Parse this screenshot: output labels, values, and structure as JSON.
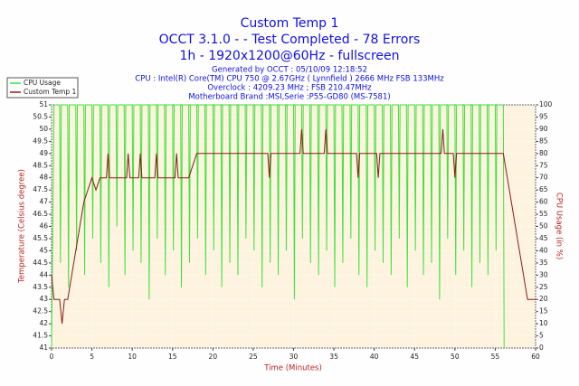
{
  "chart_data": {
    "type": "line",
    "title": "Custom Temp 1",
    "subtitle": [
      "OCCT 3.1.0 -  - Test Completed - 78 Errors",
      "1h - 1920x1200@60Hz - fullscreen"
    ],
    "info": [
      "Generated by OCCT : 05/10/09 12:18:52",
      "CPU : Intel(R) Core(TM) CPU 750 @ 2.67GHz ( Lynnfield ) 2666 MHz FSB 133MHz",
      "Overclock : 4209.23 MHz ; FSB 210.47MHz",
      "Motherboard Brand :MSI,Serie :P55-GD80 (MS-7581)"
    ],
    "xlabel": "Time (Minutes)",
    "ylabel": "Temperature (Celsius degree)",
    "y2label": "CPU Usage (in %)",
    "xlim": [
      0,
      60
    ],
    "xticks": [
      0,
      5,
      10,
      15,
      20,
      25,
      30,
      35,
      40,
      45,
      50,
      55,
      60
    ],
    "ylim": [
      41,
      51
    ],
    "yticks": [
      41,
      41.5,
      42,
      42.5,
      43,
      43.5,
      44,
      44.5,
      45,
      45.5,
      46,
      46.5,
      47,
      47.5,
      48,
      48.5,
      49,
      49.5,
      50,
      50.5,
      51
    ],
    "y2lim": [
      0,
      100
    ],
    "y2ticks": [
      0,
      5,
      10,
      15,
      20,
      25,
      30,
      35,
      40,
      45,
      50,
      55,
      60,
      65,
      70,
      75,
      80,
      85,
      90,
      95,
      100
    ],
    "grid": true,
    "legend": "top-left",
    "series": [
      {
        "name": "CPU Usage",
        "color": "#3ee23e",
        "axis": "y2",
        "x": [
          0,
          0.3,
          1,
          1.1,
          1.2,
          2,
          2.1,
          2.2,
          3,
          3.1,
          3.2,
          4,
          4.1,
          4.2,
          5,
          5.1,
          5.2,
          6,
          6.1,
          6.2,
          7,
          7.1,
          7.2,
          8,
          8.1,
          8.2,
          9,
          9.1,
          9.2,
          10,
          10.1,
          10.2,
          11,
          11.1,
          11.2,
          12,
          12.1,
          12.2,
          13,
          13.1,
          13.2,
          14,
          14.1,
          14.2,
          15,
          15.1,
          15.2,
          16,
          16.1,
          16.2,
          17,
          17.1,
          17.2,
          18,
          18.1,
          18.2,
          19,
          19.1,
          19.2,
          20,
          20.1,
          20.2,
          21,
          21.1,
          21.2,
          22,
          22.1,
          22.2,
          23,
          23.1,
          23.2,
          24,
          24.1,
          24.2,
          25,
          25.1,
          25.2,
          26,
          26.1,
          26.2,
          27,
          27.1,
          27.2,
          28,
          28.1,
          28.2,
          29,
          29.1,
          29.2,
          30,
          30.1,
          30.2,
          31,
          31.1,
          31.2,
          32,
          32.1,
          32.2,
          33,
          33.1,
          33.2,
          34,
          34.1,
          34.2,
          35,
          35.1,
          35.2,
          36,
          36.1,
          36.2,
          37,
          37.1,
          37.2,
          38,
          38.1,
          38.2,
          39,
          39.1,
          39.2,
          40,
          40.1,
          40.2,
          41,
          41.1,
          41.2,
          42,
          42.1,
          42.2,
          43,
          43.1,
          43.2,
          44,
          44.1,
          44.2,
          45,
          45.1,
          45.2,
          46,
          46.1,
          46.2,
          47,
          47.1,
          47.2,
          48,
          48.1,
          48.2,
          49,
          49.1,
          49.2,
          50,
          50.1,
          50.2,
          51,
          51.1,
          51.2,
          52,
          52.1,
          52.2,
          53,
          53.1,
          53.2,
          54,
          54.1,
          54.2,
          55,
          55.1,
          55.2,
          56,
          56.1
        ],
        "values": [
          0,
          100,
          100,
          35,
          100,
          100,
          25,
          100,
          100,
          40,
          100,
          100,
          30,
          100,
          100,
          45,
          100,
          100,
          35,
          100,
          100,
          25,
          100,
          100,
          50,
          100,
          100,
          30,
          100,
          100,
          40,
          100,
          100,
          35,
          100,
          100,
          20,
          100,
          100,
          45,
          100,
          100,
          30,
          100,
          100,
          40,
          100,
          100,
          25,
          100,
          100,
          35,
          100,
          100,
          45,
          100,
          100,
          30,
          100,
          100,
          40,
          100,
          100,
          25,
          100,
          100,
          35,
          100,
          100,
          30,
          100,
          100,
          45,
          100,
          100,
          40,
          100,
          100,
          25,
          100,
          100,
          35,
          100,
          100,
          30,
          100,
          100,
          40,
          100,
          100,
          20,
          100,
          100,
          45,
          100,
          100,
          35,
          100,
          100,
          30,
          100,
          100,
          40,
          100,
          100,
          25,
          100,
          100,
          35,
          100,
          100,
          45,
          100,
          100,
          30,
          100,
          100,
          25,
          100,
          100,
          40,
          100,
          100,
          35,
          100,
          100,
          30,
          100,
          100,
          45,
          100,
          100,
          25,
          100,
          100,
          40,
          100,
          100,
          30,
          100,
          100,
          35,
          100,
          100,
          20,
          100,
          100,
          45,
          100,
          100,
          30,
          100,
          100,
          40,
          100,
          100,
          25,
          100,
          100,
          35,
          100,
          100,
          30,
          100,
          100,
          40,
          100,
          100,
          0
        ]
      },
      {
        "name": "Custom Temp 1",
        "color": "#8b1a1a",
        "x": [
          0,
          0.3,
          1,
          1.3,
          1.6,
          2,
          2.5,
          3,
          3.5,
          4,
          4.5,
          5,
          5.5,
          6,
          6.8,
          7,
          7.2,
          9.3,
          9.5,
          9.7,
          10.8,
          11,
          11.2,
          12.8,
          13,
          13.2,
          15.3,
          15.5,
          15.7,
          17,
          18,
          26.8,
          27,
          27.2,
          30.8,
          31,
          31.2,
          33.8,
          34,
          34.2,
          37.8,
          38,
          38.2,
          40.3,
          40.5,
          40.7,
          48.3,
          48.5,
          48.7,
          49.8,
          50,
          50.2,
          56,
          56.5,
          57,
          57.5,
          58,
          58.5,
          59,
          59.5,
          60
        ],
        "values": [
          44,
          43,
          43,
          42,
          43,
          43,
          44,
          45,
          46,
          47,
          47.5,
          48,
          47.5,
          48,
          48,
          49,
          48,
          48,
          49,
          48,
          48,
          49,
          48,
          48,
          49,
          48,
          48,
          49,
          48,
          48,
          49,
          49,
          48,
          49,
          49,
          50,
          49,
          49,
          50,
          49,
          49,
          48,
          49,
          49,
          48,
          49,
          49,
          50,
          49,
          49,
          48,
          49,
          49,
          48,
          47,
          46,
          45,
          44,
          43,
          43,
          43
        ]
      }
    ]
  }
}
